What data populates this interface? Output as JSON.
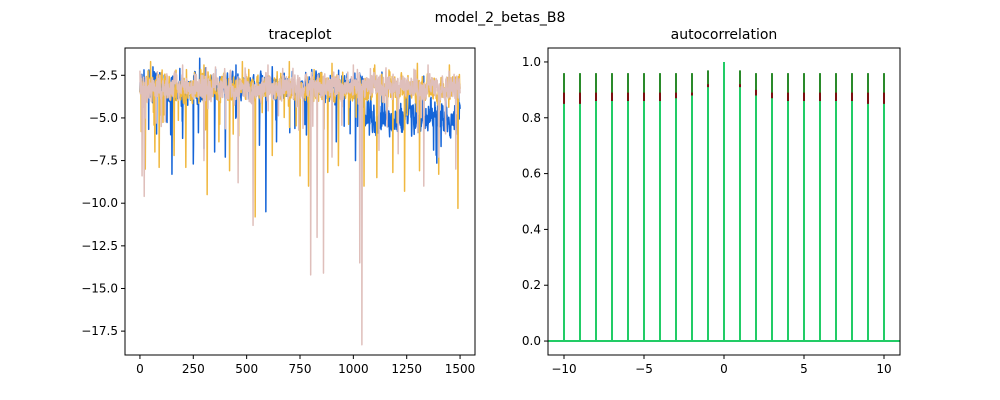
{
  "suptitle": "model_2_betas_B8",
  "chart_data": [
    {
      "type": "line",
      "title": "traceplot",
      "xlabel": "",
      "ylabel": "",
      "xlim": [
        -70,
        1570
      ],
      "ylim": [
        -18.9,
        -0.9
      ],
      "xticks": [
        0,
        250,
        500,
        750,
        1000,
        1250,
        1500
      ],
      "xtick_labels": [
        "0",
        "250",
        "500",
        "750",
        "1000",
        "1250",
        "1500"
      ],
      "yticks": [
        -2.5,
        -5.0,
        -7.5,
        -10.0,
        -12.5,
        -15.0,
        -17.5
      ],
      "ytick_labels": [
        "−2.5",
        "−5.0",
        "−7.5",
        "−10.0",
        "−12.5",
        "−15.0",
        "−17.5"
      ],
      "x_range": [
        0,
        1500
      ],
      "series": [
        {
          "color": "#1565d8",
          "typical_level": -3.2,
          "late_level": -5.3,
          "dips": [
            [
              120,
              -5.2
            ],
            [
              150,
              -8.3
            ],
            [
              200,
              -6.2
            ],
            [
              250,
              -7.7
            ],
            [
              300,
              -6.8
            ],
            [
              350,
              -7.0
            ],
            [
              400,
              -7.3
            ],
            [
              450,
              -6.5
            ],
            [
              560,
              -6.6
            ],
            [
              590,
              -10.5
            ],
            [
              640,
              -6.4
            ],
            [
              780,
              -6.0
            ],
            [
              920,
              -6.4
            ],
            [
              1010,
              -7.5
            ]
          ],
          "peaks": [
            [
              280,
              -1.5
            ],
            [
              450,
              -1.9
            ],
            [
              620,
              -2.0
            ]
          ]
        },
        {
          "color": "#f0b840",
          "typical_level": -3.3,
          "dips": [
            [
              25,
              -8.0
            ],
            [
              70,
              -7.0
            ],
            [
              90,
              -7.9
            ],
            [
              160,
              -7.2
            ],
            [
              215,
              -7.9
            ],
            [
              315,
              -9.5
            ],
            [
              370,
              -6.4
            ],
            [
              420,
              -8.1
            ],
            [
              540,
              -10.8
            ],
            [
              620,
              -7.2
            ],
            [
              700,
              -7.4
            ],
            [
              750,
              -8.4
            ],
            [
              790,
              -9.0
            ],
            [
              880,
              -8.2
            ],
            [
              930,
              -7.8
            ],
            [
              1050,
              -9.0
            ],
            [
              1110,
              -8.5
            ],
            [
              1185,
              -8.2
            ],
            [
              1240,
              -9.3
            ],
            [
              1310,
              -8.1
            ],
            [
              1400,
              -8.3
            ],
            [
              1490,
              -10.3
            ]
          ],
          "peaks": [
            [
              50,
              -1.7
            ],
            [
              300,
              -1.9
            ],
            [
              480,
              -1.7
            ],
            [
              700,
              -1.7
            ],
            [
              900,
              -1.8
            ],
            [
              1100,
              -1.9
            ],
            [
              1300,
              -1.8
            ],
            [
              1450,
              -1.9
            ]
          ]
        },
        {
          "color": "#dfbfbb",
          "typical_level": -3.2,
          "dips": [
            [
              10,
              -8.4
            ],
            [
              20,
              -9.6
            ],
            [
              100,
              -5.5
            ],
            [
              300,
              -7.5
            ],
            [
              460,
              -8.8
            ],
            [
              530,
              -11.3
            ],
            [
              600,
              -6.5
            ],
            [
              800,
              -14.2
            ],
            [
              830,
              -12.0
            ],
            [
              860,
              -14.1
            ],
            [
              900,
              -7.3
            ],
            [
              1030,
              -13.5
            ],
            [
              1040,
              -18.3
            ],
            [
              1120,
              -6.9
            ],
            [
              1210,
              -7.1
            ],
            [
              1330,
              -9.0
            ],
            [
              1400,
              -7.3
            ],
            [
              1480,
              -8.0
            ]
          ],
          "peaks": [
            [
              200,
              -1.9
            ],
            [
              600,
              -1.9
            ],
            [
              1000,
              -1.9
            ],
            [
              1350,
              -1.9
            ]
          ]
        }
      ]
    },
    {
      "type": "bar",
      "title": "autocorrelation",
      "xlabel": "",
      "ylabel": "",
      "xlim": [
        -11,
        11
      ],
      "ylim": [
        -0.05,
        1.05
      ],
      "xticks": [
        -10,
        -5,
        0,
        5,
        10
      ],
      "xtick_labels": [
        "−10",
        "−5",
        "0",
        "5",
        "10"
      ],
      "yticks": [
        0.0,
        0.2,
        0.4,
        0.6,
        0.8,
        1.0
      ],
      "ytick_labels": [
        "0.0",
        "0.2",
        "0.4",
        "0.6",
        "0.8",
        "1.0"
      ],
      "lags": [
        -10,
        -9,
        -8,
        -7,
        -6,
        -5,
        -4,
        -3,
        -2,
        -1,
        0,
        1,
        2,
        3,
        4,
        5,
        6,
        7,
        8,
        9,
        10
      ],
      "series": [
        {
          "color": "#2a8a2a",
          "values": [
            0.96,
            0.96,
            0.96,
            0.96,
            0.96,
            0.96,
            0.96,
            0.96,
            0.96,
            0.97,
            1.0,
            0.97,
            0.96,
            0.96,
            0.96,
            0.96,
            0.96,
            0.96,
            0.96,
            0.96,
            0.96
          ]
        },
        {
          "color": "#7a1010",
          "values": [
            0.89,
            0.89,
            0.89,
            0.89,
            0.89,
            0.89,
            0.89,
            0.89,
            0.89,
            0.92,
            1.0,
            0.92,
            0.9,
            0.89,
            0.89,
            0.89,
            0.89,
            0.89,
            0.89,
            0.89,
            0.89
          ]
        },
        {
          "color": "#22cc66",
          "values": [
            0.85,
            0.85,
            0.86,
            0.86,
            0.86,
            0.86,
            0.86,
            0.87,
            0.88,
            0.91,
            1.0,
            0.91,
            0.88,
            0.87,
            0.86,
            0.86,
            0.86,
            0.86,
            0.86,
            0.85,
            0.85
          ]
        }
      ],
      "baseline_color": "#22cc66"
    }
  ]
}
